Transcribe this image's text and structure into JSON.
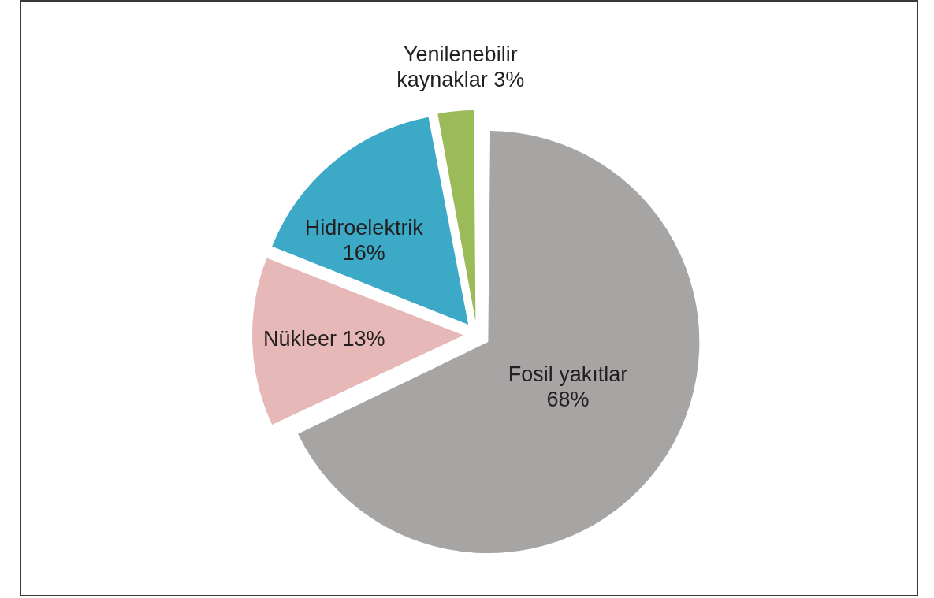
{
  "chart_data": {
    "type": "pie",
    "categories": [
      "Fosil yakıtlar",
      "Nükleer",
      "Hidroelektrik",
      "Yenilenebilir kaynaklar"
    ],
    "values": [
      68,
      13,
      16,
      3
    ],
    "value_labels": [
      "68%",
      "13%",
      "16%",
      "3%"
    ],
    "colors": [
      "#a6a5a4",
      "#e6b8b7",
      "#3ca9c6",
      "#9bbb59"
    ]
  }
}
